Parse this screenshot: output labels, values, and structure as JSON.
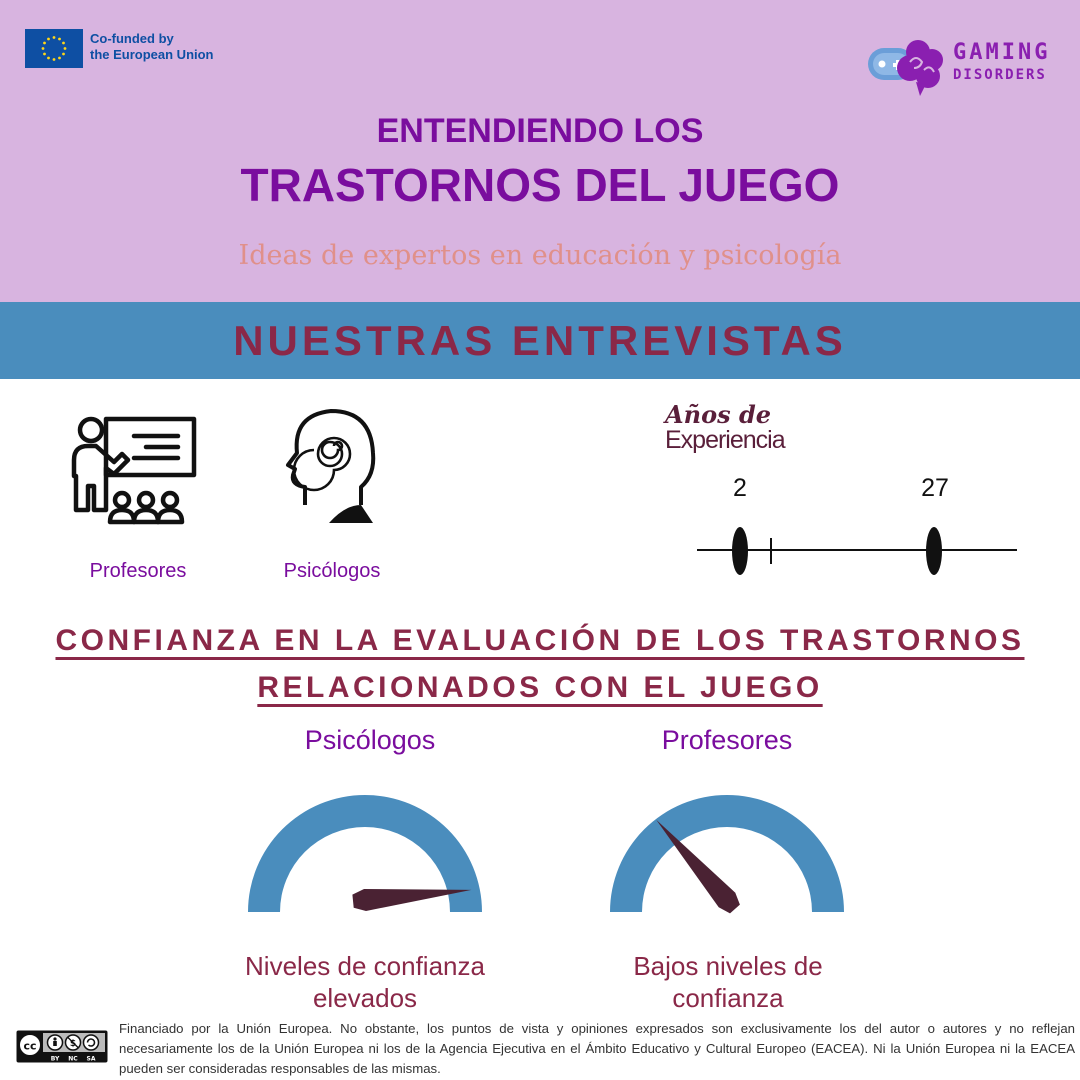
{
  "header": {
    "eu_text": "Co-funded by\nthe European Union",
    "logo_line1": "GAMING",
    "logo_line2": "DISORDERS",
    "title_line1": "ENTENDIENDO LOS",
    "title_line2": "TRASTORNOS DEL JUEGO",
    "subtitle": "Ideas de expertos en educación y psicología"
  },
  "interviews": {
    "heading": "NUESTRAS ENTREVISTAS",
    "teachers_label": "Profesores",
    "psychologists_label": "Psicólogos",
    "experience_title_italic": "Años de",
    "experience_title": "Experiencia",
    "experience_min": "2",
    "experience_max": "27"
  },
  "confidence": {
    "heading_line1": "CONFIANZA EN LA EVALUACIÓN DE LOS TRASTORNOS",
    "heading_line2": "RELACIONADOS CON EL JUEGO",
    "gauges": [
      {
        "label": "Psicólogos",
        "caption": "Niveles de confianza elevados",
        "level": 0.97
      },
      {
        "label": "Profesores",
        "caption": "Bajos niveles de confianza",
        "level": 0.27
      }
    ]
  },
  "colors": {
    "header_bg": "#d8b4e0",
    "band_bg": "#4a8dbd",
    "purple": "#7a0d9e",
    "maroon": "#8a2848",
    "gauge_arc": "#4a8dbd",
    "needle": "#4a2233"
  },
  "footer": {
    "license_labels": [
      "BY",
      "NC",
      "SA"
    ],
    "disclaimer": "Financiado por la Unión Europea. No obstante, los puntos de vista y opiniones expresados son exclusivamente los del autor o autores y no reflejan necesariamente los de la Unión Europea ni los de la Agencia Ejecutiva en el Ámbito Educativo y Cultural Europeo (EACEA). Ni la Unión Europea ni la EACEA pueden ser consideradas responsables de las mismas."
  }
}
